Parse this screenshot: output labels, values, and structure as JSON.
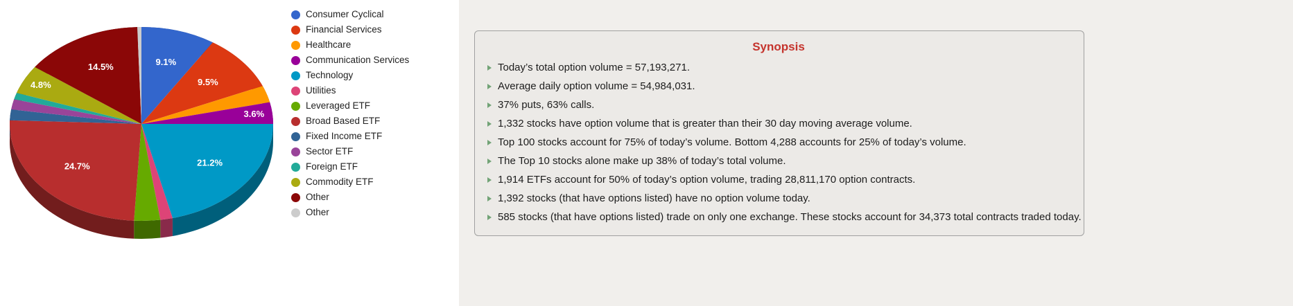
{
  "chart_data": {
    "type": "pie",
    "pie_style": "3d",
    "legend_position": "right",
    "labels_unit": "percent",
    "slices": [
      {
        "name": "Consumer Cyclical",
        "value": 9.1,
        "label": "9.1%",
        "color": "#3366cc"
      },
      {
        "name": "Financial Services",
        "value": 9.5,
        "label": "9.5%",
        "color": "#dc3912"
      },
      {
        "name": "Healthcare",
        "value": 2.8,
        "label": "",
        "color": "#ff9900"
      },
      {
        "name": "Communication Services",
        "value": 3.6,
        "label": "3.6%",
        "color": "#990099"
      },
      {
        "name": "Technology",
        "value": 21.2,
        "label": "21.2%",
        "color": "#0099c6"
      },
      {
        "name": "Utilities",
        "value": 1.5,
        "label": "",
        "color": "#dd4477"
      },
      {
        "name": "Leveraged ETF",
        "value": 3.2,
        "label": "",
        "color": "#66aa00"
      },
      {
        "name": "Broad Based ETF",
        "value": 24.7,
        "label": "24.7%",
        "color": "#b82e2e"
      },
      {
        "name": "Fixed Income ETF",
        "value": 1.8,
        "label": "",
        "color": "#316395"
      },
      {
        "name": "Sector ETF",
        "value": 1.7,
        "label": "",
        "color": "#994499"
      },
      {
        "name": "Foreign ETF",
        "value": 1.1,
        "label": "",
        "color": "#22aa99"
      },
      {
        "name": "Commodity ETF",
        "value": 4.8,
        "label": "4.8%",
        "color": "#aaaa11"
      },
      {
        "name": "Other",
        "value": 14.5,
        "label": "14.5%",
        "color": "#8b0707"
      },
      {
        "name": "Other",
        "value": 0.5,
        "label": "",
        "color": "#cccccc"
      }
    ]
  },
  "synopsis": {
    "title": "Synopsis",
    "items": [
      "Today’s total option volume = 57,193,271.",
      "Average daily option volume = 54,984,031.",
      "37% puts, 63% calls.",
      "1,332 stocks have option volume that is greater than their 30 day moving average volume.",
      "Top 100 stocks account for 75% of today’s volume. Bottom 4,288 accounts for 25% of today’s volume.",
      "The Top 10 stocks alone make up 38% of today’s total volume.",
      "1,914 ETFs account for 50% of today’s option volume, trading 28,811,170 option contracts.",
      "1,392 stocks (that have options listed) have no option volume today.",
      "585 stocks (that have options listed) trade on only one exchange. These stocks account for 34,373 total contracts traded today."
    ]
  },
  "theme": {
    "left_bg": "#ffffff",
    "panel_bg": "#f1efec",
    "box_bg": "#eceae7",
    "box_border": "#a0a0a0",
    "title_red": "#c5342d",
    "bullet_color": "#72a376",
    "text_color": "#1d1d1d"
  }
}
